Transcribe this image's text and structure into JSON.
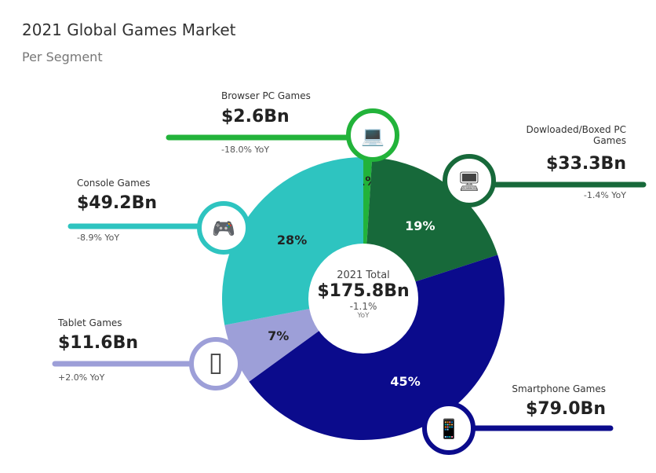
{
  "title": "2021 Global Games Market",
  "subtitle": "Per Segment",
  "chart_data": {
    "type": "pie",
    "title": "2021 Global Games Market",
    "subtitle": "Per Segment",
    "center": {
      "label": "2021 Total",
      "value": "$175.8Bn",
      "change": "-1.1%",
      "change_unit": "YoY"
    },
    "segments": [
      {
        "name": "Browser PC Games",
        "value": "$2.6Bn",
        "share": 1,
        "yoy": "-18.0% YoY",
        "color": "#22b33a",
        "icon": "laptop-icon"
      },
      {
        "name": "Dowloaded/Boxed PC Games",
        "value": "$33.3Bn",
        "share": 19,
        "yoy": "-1.4% YoY",
        "color": "#17693a",
        "icon": "desktop-pc-icon"
      },
      {
        "name": "Smartphone Games",
        "value": "$79.0Bn",
        "share": 45,
        "yoy": "",
        "color": "#0b0b8c",
        "icon": "smartphone-icon"
      },
      {
        "name": "Tablet Games",
        "value": "$11.6Bn",
        "share": 7,
        "yoy": "+2.0% YoY",
        "color": "#9d9fd8",
        "icon": "tablet-icon"
      },
      {
        "name": "Console Games",
        "value": "$49.2Bn",
        "share": 28,
        "yoy": "-8.9% YoY",
        "color": "#2ec4c0",
        "icon": "gamepad-icon"
      }
    ]
  }
}
